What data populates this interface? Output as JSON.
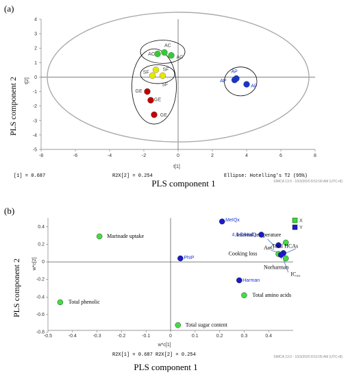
{
  "panels": {
    "a": {
      "label": "(a)",
      "ylabel_big": "PLS component 2",
      "xlabel_big": "PLS component 1",
      "ylabel_small": "t[2]",
      "xlabel_small": "t[1]",
      "footer_left": "[1] = 0.687",
      "footer_mid": "R2X[2] = 0.254",
      "footer_right": "Ellipse: Hotelling's T2 (95%)",
      "watermark": "SIMCA 13.0 - 10/3/2020 8:52:00 AM (UTC+8)"
    },
    "b": {
      "label": "(b)",
      "ylabel_big": "PLS component 2",
      "xlabel_big": "PLS component 1",
      "ylabel_small": "w*c[2]",
      "xlabel_small": "w*c[1]",
      "footer": "R2X[1] = 0.687  R2X[2] = 0.254",
      "watermark": "SIMCA 13.0 - 10/3/2020 8:52:05 AM (UTC+8)",
      "legend_x": "X",
      "legend_y": "Y"
    }
  },
  "chart_data": [
    {
      "type": "scatter",
      "panel": "a",
      "xlim": [
        -8,
        8
      ],
      "ylim": [
        -5,
        4
      ],
      "xticks": [
        -8,
        -6,
        -4,
        -2,
        0,
        2,
        4,
        6,
        8
      ],
      "yticks": [
        -5,
        -4,
        -3,
        -2,
        -1,
        0,
        1,
        2,
        3,
        4
      ],
      "grid": false,
      "ellipse_hotelling": {
        "cx": 0,
        "cy": 0,
        "rx": 8,
        "ry": 4
      },
      "groups": [
        {
          "name": "AC",
          "color": "#33cc33",
          "points": [
            [
              -1.2,
              1.6
            ],
            [
              -0.8,
              1.7
            ],
            [
              -0.4,
              1.5
            ]
          ],
          "labels": [
            {
              "text": "AC",
              "x": -1.75,
              "y": 1.6
            },
            {
              "text": "AC",
              "x": -0.8,
              "y": 2.2
            },
            {
              "text": "AC",
              "x": -0.1,
              "y": 1.4
            }
          ]
        },
        {
          "name": "SF",
          "color": "#e8e800",
          "points": [
            [
              -1.3,
              0.5
            ],
            [
              -1.5,
              0.1
            ],
            [
              -0.9,
              0.1
            ]
          ],
          "labels": [
            {
              "text": "SF",
              "x": -0.9,
              "y": 0.55
            },
            {
              "text": "SF",
              "x": -2.05,
              "y": 0.35
            },
            {
              "text": "SF",
              "x": -0.95,
              "y": -0.5
            }
          ]
        },
        {
          "name": "GE",
          "color": "#c00000",
          "points": [
            [
              -1.8,
              -1.0
            ],
            [
              -1.6,
              -1.6
            ],
            [
              -1.4,
              -2.6
            ]
          ],
          "labels": [
            {
              "text": "GE",
              "x": -2.5,
              "y": -0.95
            },
            {
              "text": "GE",
              "x": -1.4,
              "y": -1.55
            },
            {
              "text": "GE",
              "x": -1.05,
              "y": -2.6
            }
          ]
        },
        {
          "name": "AP",
          "color": "#1a33cc",
          "points": [
            [
              3.4,
              -0.1
            ],
            [
              3.3,
              -0.2
            ],
            [
              4.0,
              -0.5
            ]
          ],
          "labels": [
            {
              "text": "AP",
              "x": 3.1,
              "y": 0.4
            },
            {
              "text": "AP",
              "x": 2.45,
              "y": -0.25
            },
            {
              "text": "AP",
              "x": 4.25,
              "y": -0.6
            }
          ]
        }
      ],
      "group_ellipses": [
        {
          "cx": -0.9,
          "cy": 1.75,
          "rx": 1.3,
          "ry": 0.8
        },
        {
          "cx": -1.2,
          "cy": 0.2,
          "rx": 1.0,
          "ry": 0.65
        },
        {
          "cx": -1.4,
          "cy": -0.65,
          "rx": 1.3,
          "ry": 2.6
        },
        {
          "cx": 3.65,
          "cy": -0.3,
          "rx": 0.95,
          "ry": 1.0
        }
      ]
    },
    {
      "type": "scatter",
      "panel": "b",
      "xlim": [
        -0.5,
        0.5
      ],
      "ylim": [
        -0.78,
        0.5
      ],
      "xticks": [
        -0.5,
        -0.4,
        -0.3,
        -0.2,
        -0.1,
        0,
        0.1,
        0.2,
        0.3,
        0.4
      ],
      "yticks": [
        -0.8,
        -0.6,
        -0.4,
        -0.2,
        0,
        0.2,
        0.4
      ],
      "grid": false,
      "x_variables": [
        {
          "label": "Marinade uptake",
          "x": -0.29,
          "y": 0.29
        },
        {
          "label": "Total phenolic",
          "x": -0.45,
          "y": -0.46
        },
        {
          "label": "Total sugar content",
          "x": 0.03,
          "y": -0.72
        },
        {
          "label": "Total amino acids",
          "x": 0.3,
          "y": -0.38
        },
        {
          "label": "Internal temperature",
          "x": 0.47,
          "y": 0.22
        },
        {
          "label": "Cooking loss",
          "x": 0.44,
          "y": 0.09
        },
        {
          "label": "",
          "x": 0.47,
          "y": 0.04
        }
      ],
      "y_variables": [
        {
          "label": "MeIQx",
          "x": 0.21,
          "y": 0.46
        },
        {
          "label": "4,8-DiMeIQ",
          "x": 0.37,
          "y": 0.31
        },
        {
          "label": "PhIP",
          "x": 0.04,
          "y": 0.04
        },
        {
          "label": "Harman",
          "x": 0.28,
          "y": -0.21
        },
        {
          "label": "",
          "x": 0.44,
          "y": 0.19
        },
        {
          "label": "",
          "x": 0.46,
          "y": 0.1
        },
        {
          "label": "",
          "x": 0.45,
          "y": 0.08
        }
      ],
      "annotations": [
        {
          "text": "AαC",
          "x": 0.38,
          "y": 0.14
        },
        {
          "text": "Total HCAs",
          "x": 0.52,
          "y": 0.16
        },
        {
          "text": "Norharman",
          "x": 0.38,
          "y": -0.08
        },
        {
          "text": "IC₅₀",
          "x": 0.49,
          "y": -0.16
        }
      ]
    }
  ]
}
